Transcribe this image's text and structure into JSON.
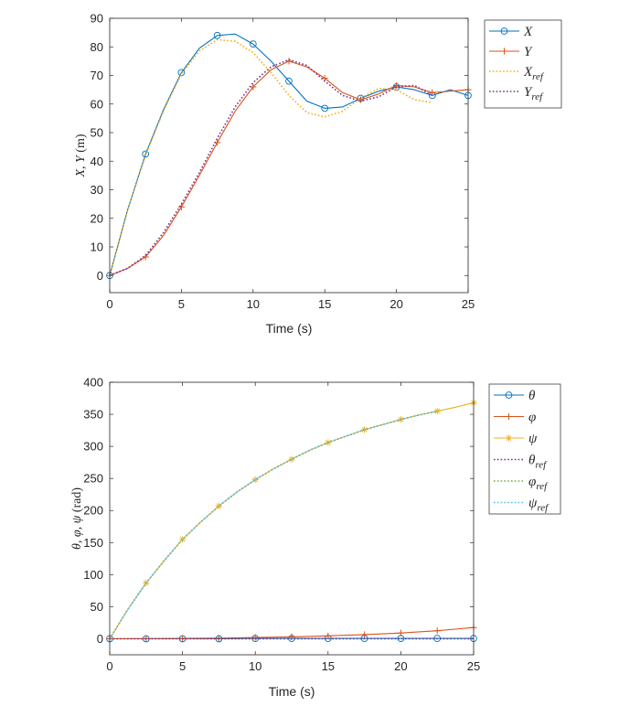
{
  "colors": {
    "blue": "#0072BD",
    "orange": "#D95319",
    "yellow": "#EDB120",
    "purple": "#7E2F8E",
    "green": "#77AC30",
    "cyan": "#4DBEEE",
    "axis": "#262626"
  },
  "chart_data": [
    {
      "type": "line",
      "xlabel": "Time (s)",
      "ylabel": "X, Y (m)",
      "xlim": [
        0,
        25
      ],
      "ylim": [
        -6,
        90
      ],
      "xticks": [
        0,
        5,
        10,
        15,
        20,
        25
      ],
      "yticks": [
        0,
        10,
        20,
        30,
        40,
        50,
        60,
        70,
        80,
        90
      ],
      "legend_position": "outside-right",
      "legend": [
        {
          "base": "X",
          "sub": "",
          "color": "blue",
          "style": "solid",
          "marker": "o"
        },
        {
          "base": "Y",
          "sub": "",
          "color": "orange",
          "style": "solid",
          "marker": "+"
        },
        {
          "base": "X",
          "sub": "ref",
          "color": "yellow",
          "style": "dotted",
          "marker": ""
        },
        {
          "base": "Y",
          "sub": "ref",
          "color": "purple",
          "style": "dotted",
          "marker": ""
        }
      ],
      "series": [
        {
          "name": "X",
          "color": "blue",
          "style": "solid",
          "marker": "o",
          "x": [
            0,
            1.25,
            2.5,
            3.75,
            5,
            6.25,
            7.5,
            8.75,
            10,
            11.25,
            12.5,
            13.75,
            15,
            16.25,
            17.5,
            18.75,
            20,
            21.25,
            22.5,
            23.75,
            25
          ],
          "y": [
            0,
            23,
            42.5,
            58,
            71,
            79.5,
            84,
            84.5,
            81,
            75,
            68,
            61,
            58.5,
            59,
            62,
            64.5,
            66,
            65,
            63,
            65,
            63
          ],
          "marker_x": [
            0,
            2.5,
            5,
            7.5,
            10,
            12.5,
            15,
            17.5,
            20,
            22.5,
            25
          ],
          "marker_y": [
            0,
            42.5,
            71,
            84,
            81,
            68,
            58.5,
            62,
            66,
            63,
            63
          ]
        },
        {
          "name": "Y",
          "color": "orange",
          "style": "solid",
          "marker": "+",
          "x": [
            0,
            1.25,
            2.5,
            3.75,
            5,
            6.25,
            7.5,
            8.75,
            10,
            11.25,
            12.5,
            13.75,
            15,
            16.25,
            17.5,
            18.75,
            20,
            21.25,
            22.5,
            23.75,
            25
          ],
          "y": [
            0,
            2.5,
            6.5,
            14,
            24,
            35,
            46.5,
            57.5,
            66,
            72,
            75,
            73,
            69,
            64,
            61.5,
            63.5,
            66.5,
            66,
            64,
            64.5,
            65
          ],
          "marker_x": [
            0,
            2.5,
            5,
            7.5,
            10,
            12.5,
            15,
            17.5,
            20,
            22.5,
            25
          ],
          "marker_y": [
            0,
            6.5,
            24,
            46.5,
            66,
            75,
            69,
            61.5,
            66.5,
            64,
            65
          ]
        },
        {
          "name": "X_ref",
          "color": "yellow",
          "style": "dotted",
          "marker": "",
          "x": [
            0,
            1.25,
            2.5,
            3.75,
            5,
            6.25,
            7.5,
            8.75,
            10,
            11.25,
            12.5,
            13.75,
            15,
            16.25,
            17.5,
            18.75,
            20,
            21.25,
            22.5
          ],
          "y": [
            0,
            23,
            42,
            57.5,
            70.5,
            78.5,
            82.5,
            82,
            78,
            71,
            63,
            57,
            55.5,
            57.5,
            62,
            65.5,
            65,
            61.5,
            60.5
          ]
        },
        {
          "name": "Y_ref",
          "color": "purple",
          "style": "dotted",
          "marker": "",
          "x": [
            0,
            1.25,
            2.5,
            3.75,
            5,
            6.25,
            7.5,
            8.75,
            10,
            11.25,
            12.5,
            13.75,
            15,
            16.25,
            17.5,
            18.75,
            20,
            21.25,
            22.5
          ],
          "y": [
            0,
            2.5,
            7,
            15,
            25,
            36,
            48,
            59,
            67.5,
            73,
            75.5,
            73.5,
            68,
            63,
            61,
            62.5,
            66,
            66.5,
            63
          ]
        }
      ]
    },
    {
      "type": "line",
      "xlabel": "Time (s)",
      "ylabel": "θ, φ, ψ (rad)",
      "xlim": [
        0,
        25
      ],
      "ylim": [
        -25,
        400
      ],
      "xticks": [
        0,
        5,
        10,
        15,
        20,
        25
      ],
      "yticks": [
        0,
        50,
        100,
        150,
        200,
        250,
        300,
        350,
        400
      ],
      "legend_position": "outside-right",
      "legend": [
        {
          "base": "θ",
          "sub": "",
          "color": "blue",
          "style": "solid",
          "marker": "o"
        },
        {
          "base": "φ",
          "sub": "",
          "color": "orange",
          "style": "solid",
          "marker": "+"
        },
        {
          "base": "ψ",
          "sub": "",
          "color": "yellow",
          "style": "solid",
          "marker": "*"
        },
        {
          "base": "θ",
          "sub": "ref",
          "color": "purple",
          "style": "dotted",
          "marker": ""
        },
        {
          "base": "φ",
          "sub": "ref",
          "color": "green",
          "style": "dotted",
          "marker": ""
        },
        {
          "base": "ψ",
          "sub": "ref",
          "color": "cyan",
          "style": "dotted",
          "marker": ""
        }
      ],
      "series": [
        {
          "name": "theta",
          "color": "blue",
          "style": "solid",
          "marker": "o",
          "x": [
            0,
            2.5,
            5,
            7.5,
            10,
            12.5,
            15,
            17.5,
            20,
            22.5,
            25
          ],
          "y": [
            0,
            0,
            0,
            0,
            0.5,
            0.5,
            0.5,
            0.5,
            0.5,
            0.5,
            0.5
          ],
          "marker_x": [
            0,
            2.5,
            5,
            7.5,
            10,
            12.5,
            15,
            17.5,
            20,
            22.5,
            25
          ],
          "marker_y": [
            0,
            0,
            0,
            0,
            0.5,
            0.5,
            0.5,
            0.5,
            0.5,
            0.5,
            0.5
          ]
        },
        {
          "name": "phi",
          "color": "orange",
          "style": "solid",
          "marker": "+",
          "x": [
            0,
            2.5,
            5,
            7.5,
            10,
            12.5,
            15,
            17.5,
            20,
            22.5,
            25
          ],
          "y": [
            0,
            0.2,
            0.5,
            1,
            2,
            3,
            4.5,
            6.5,
            9,
            12.5,
            17.5
          ],
          "marker_x": [
            0,
            2.5,
            5,
            7.5,
            10,
            12.5,
            15,
            17.5,
            20,
            22.5,
            25
          ],
          "marker_y": [
            0,
            0.2,
            0.5,
            1,
            2,
            3,
            4.5,
            6.5,
            9,
            12.5,
            17.5
          ]
        },
        {
          "name": "psi",
          "color": "yellow",
          "style": "solid",
          "marker": "*",
          "x": [
            0,
            1.25,
            2.5,
            3.75,
            5,
            6.25,
            7.5,
            8.75,
            10,
            11.25,
            12.5,
            13.75,
            15,
            16.25,
            17.5,
            18.75,
            20,
            21.25,
            22.5,
            23.75,
            25
          ],
          "y": [
            0,
            46,
            87,
            122,
            155,
            182,
            207,
            229,
            248,
            265,
            280,
            294,
            306,
            316,
            326,
            334,
            342,
            349,
            355,
            361,
            368
          ],
          "marker_x": [
            2.5,
            5,
            7.5,
            10,
            12.5,
            15,
            17.5,
            20,
            22.5,
            25
          ],
          "marker_y": [
            87,
            155,
            207,
            248,
            280,
            306,
            326,
            342,
            355,
            368
          ]
        },
        {
          "name": "theta_ref",
          "color": "purple",
          "style": "dotted",
          "marker": "",
          "x": [
            0,
            5,
            10,
            15,
            20,
            25
          ],
          "y": [
            0,
            0,
            0,
            0,
            0,
            0
          ]
        },
        {
          "name": "phi_ref",
          "color": "green",
          "style": "dotted",
          "marker": "",
          "x": [
            0,
            1.25,
            2.5,
            3.75,
            5,
            6.25,
            7.5,
            8.75,
            10,
            11.25,
            12.5,
            13.75,
            15,
            16.25,
            17.5,
            18.75,
            20,
            21.25,
            22.5
          ],
          "y": [
            0,
            46,
            87,
            122,
            155,
            182,
            207,
            229,
            248,
            265,
            280,
            294,
            306,
            316,
            326,
            334,
            342,
            349,
            355
          ]
        },
        {
          "name": "psi_ref",
          "color": "cyan",
          "style": "dotted",
          "marker": "",
          "x": [
            0,
            1.25,
            2.5,
            3.75,
            5,
            6.25,
            7.5,
            8.75,
            10,
            11.25,
            12.5,
            13.75,
            15,
            16.25,
            17.5,
            18.75,
            20,
            21.25,
            22.5
          ],
          "y": [
            0,
            46,
            87,
            122,
            155,
            182,
            207,
            229,
            248,
            265,
            280,
            294,
            306,
            316,
            326,
            334,
            342,
            349,
            355
          ]
        }
      ]
    }
  ]
}
